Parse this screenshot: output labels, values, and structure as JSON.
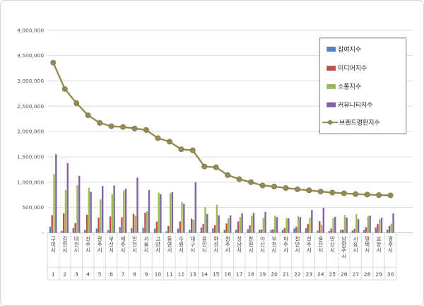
{
  "figure": {
    "background": "#ffffff",
    "border_color": "#d4d4d4",
    "gridline_color": "#dcdcdc",
    "axis_line_color": "#bfbfbf",
    "label_color": "#595959",
    "category_color": "#404040"
  },
  "legend": {
    "position": "top-right",
    "border_color": "#7f7f7f",
    "items": [
      {
        "label": "참여지수",
        "color": "#4f81bd",
        "type": "bar",
        "icon": "legend-swatch-blue"
      },
      {
        "label": "미디어지수",
        "color": "#c0504d",
        "type": "bar",
        "icon": "legend-swatch-red"
      },
      {
        "label": "소통지수",
        "color": "#9bbb59",
        "type": "bar",
        "icon": "legend-swatch-green"
      },
      {
        "label": "커뮤니티지수",
        "color": "#8064a2",
        "type": "bar",
        "icon": "legend-swatch-purple"
      },
      {
        "label": "브랜드평판지수",
        "color": "#948a54",
        "type": "line",
        "icon": "legend-line-marker"
      }
    ]
  },
  "y_axis": {
    "min": 0,
    "max": 4000000,
    "step": 500000,
    "tick_labels_top_down": [
      "4,000,000",
      "3,500,000",
      "3,000,000",
      "2,500,000",
      "2,000,000",
      "1,500,000",
      "1,000,000",
      "500,000",
      "-"
    ]
  },
  "chart_data": {
    "type": "bar",
    "subtype": "grouped-bars-with-line-overlay",
    "title": "",
    "xlabel": "",
    "ylabel": "",
    "ylim": [
      0,
      4000000
    ],
    "grid": true,
    "legend_position": "top-right",
    "categories": [
      "구미시",
      "김천시",
      "대전시",
      "진주시",
      "광주시",
      "부산시",
      "제주시",
      "인천시",
      "서울시",
      "고양시",
      "통영시",
      "수원시",
      "대구시",
      "용인시",
      "화성시",
      "청주시",
      "성남시",
      "창원시",
      "아산시",
      "부천시",
      "파주시",
      "천안시",
      "전주시",
      "울산시",
      "안산시",
      "남양주시",
      "시흥시",
      "평택시",
      "포항시",
      "경주시"
    ],
    "ranks": [
      1,
      2,
      3,
      4,
      5,
      6,
      7,
      8,
      9,
      10,
      11,
      12,
      13,
      14,
      15,
      16,
      17,
      18,
      19,
      20,
      21,
      22,
      23,
      24,
      25,
      26,
      27,
      28,
      29,
      30
    ],
    "series": [
      {
        "name": "참여지수",
        "type": "bar",
        "color": "#4f81bd",
        "values": [
          120000,
          40000,
          95000,
          60000,
          85000,
          55000,
          115000,
          90000,
          100000,
          80000,
          30000,
          85000,
          60000,
          105000,
          90000,
          60000,
          60000,
          70000,
          60000,
          60000,
          60000,
          85000,
          90000,
          45000,
          35000,
          60000,
          45000,
          60000,
          105000,
          60000
        ]
      },
      {
        "name": "미디어지수",
        "type": "bar",
        "color": "#c0504d",
        "values": [
          350000,
          385000,
          195000,
          360000,
          300000,
          325000,
          310000,
          375000,
          395000,
          220000,
          135000,
          225000,
          280000,
          175000,
          150000,
          185000,
          225000,
          150000,
          65000,
          70000,
          95000,
          120000,
          175000,
          230000,
          85000,
          65000,
          80000,
          110000,
          175000,
          135000
        ]
      },
      {
        "name": "소통지수",
        "type": "bar",
        "color": "#9bbb59",
        "values": [
          1160000,
          845000,
          940000,
          890000,
          660000,
          765000,
          835000,
          340000,
          425000,
          795000,
          780000,
          610000,
          255000,
          505000,
          555000,
          290000,
          310000,
          340000,
          295000,
          340000,
          290000,
          325000,
          300000,
          155000,
          290000,
          350000,
          370000,
          325000,
          270000,
          180000
        ]
      },
      {
        "name": "커뮤니티지수",
        "type": "bar",
        "color": "#8064a2",
        "values": [
          1550000,
          1375000,
          1125000,
          810000,
          925000,
          935000,
          870000,
          1090000,
          845000,
          765000,
          805000,
          570000,
          1000000,
          370000,
          345000,
          345000,
          385000,
          395000,
          415000,
          310000,
          290000,
          310000,
          450000,
          495000,
          315000,
          300000,
          270000,
          340000,
          300000,
          385000
        ]
      },
      {
        "name": "브랜드평판지수",
        "type": "line",
        "color": "#948a54",
        "values": [
          3360000,
          2840000,
          2560000,
          2320000,
          2170000,
          2105000,
          2090000,
          2060000,
          2030000,
          1870000,
          1800000,
          1650000,
          1630000,
          1310000,
          1295000,
          1140000,
          1060000,
          1000000,
          935000,
          915000,
          885000,
          860000,
          840000,
          815000,
          795000,
          780000,
          765000,
          755000,
          745000,
          740000
        ]
      }
    ]
  }
}
